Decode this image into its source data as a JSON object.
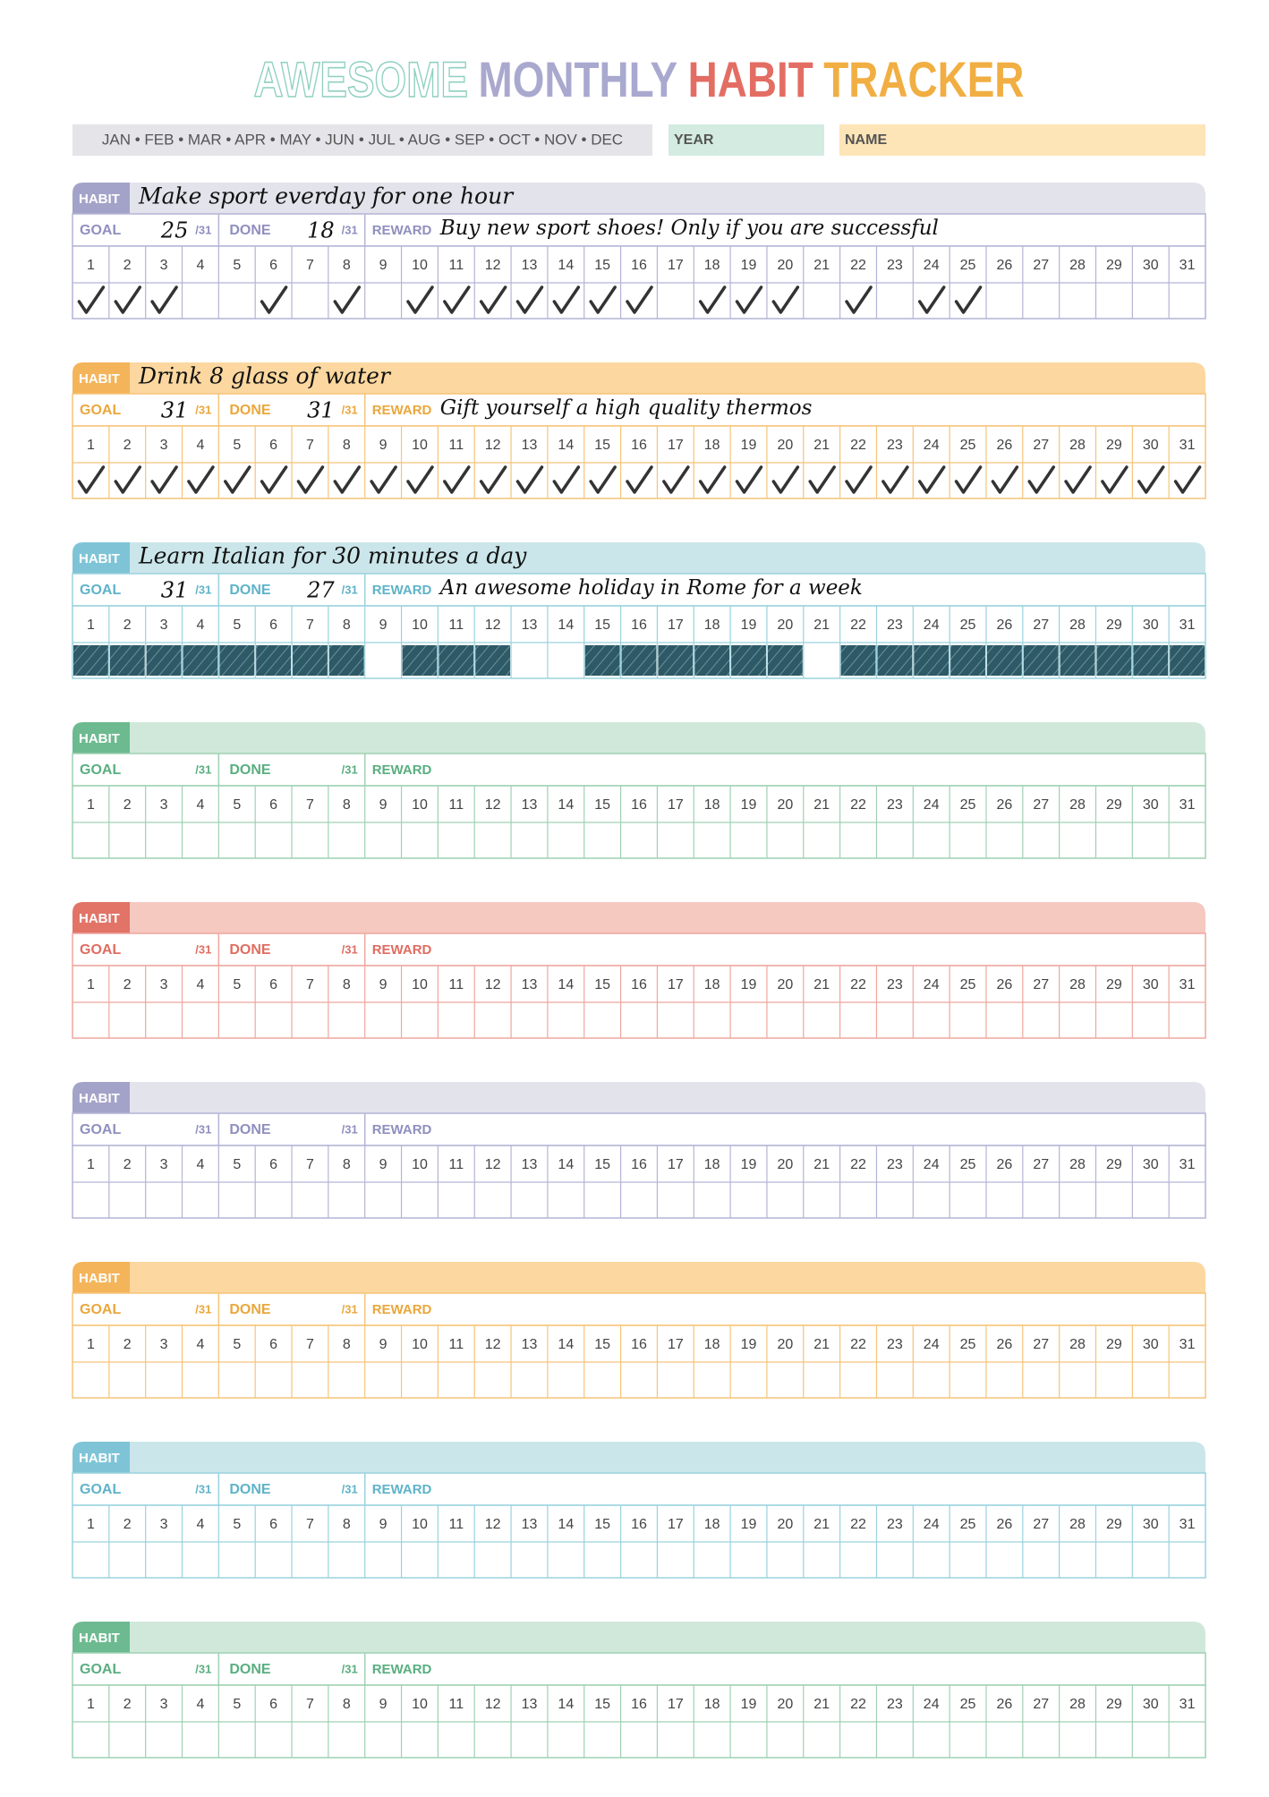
{
  "title": [
    "AWESOME",
    "MONTHLY",
    "HABIT",
    "TRACKER"
  ],
  "months": "JAN • FEB • MAR • APR • MAY • JUN • JUL • AUG • SEP • OCT • NOV • DEC",
  "year_label": "YEAR",
  "name_label": "NAME",
  "labels": {
    "habit": "HABIT",
    "goal": "GOAL",
    "done": "DONE",
    "reward": "REWARD",
    "of_days": "/31"
  },
  "days": [
    1,
    2,
    3,
    4,
    5,
    6,
    7,
    8,
    9,
    10,
    11,
    12,
    13,
    14,
    15,
    16,
    17,
    18,
    19,
    20,
    21,
    22,
    23,
    24,
    25,
    26,
    27,
    28,
    29,
    30,
    31
  ],
  "habits": [
    {
      "theme": "purple",
      "name": "Make sport everday for one hour",
      "goal": 25,
      "done": 18,
      "reward": "Buy new sport shoes! Only if you are successful",
      "mark": "check",
      "checked": [
        1,
        2,
        3,
        6,
        8,
        10,
        11,
        12,
        13,
        14,
        15,
        16,
        18,
        19,
        20,
        22,
        24,
        25
      ]
    },
    {
      "theme": "orange",
      "name": "Drink 8 glass of water",
      "goal": 31,
      "done": 31,
      "reward": "Gift yourself a high quality thermos",
      "mark": "check",
      "checked": [
        1,
        2,
        3,
        4,
        5,
        6,
        7,
        8,
        9,
        10,
        11,
        12,
        13,
        14,
        15,
        16,
        17,
        18,
        19,
        20,
        21,
        22,
        23,
        24,
        25,
        26,
        27,
        28,
        29,
        30,
        31
      ]
    },
    {
      "theme": "blue",
      "name": "Learn Italian for 30 minutes a day",
      "goal": 31,
      "done": 27,
      "reward": "An awesome holiday in Rome for a week",
      "mark": "hatch",
      "checked": [
        1,
        2,
        3,
        4,
        5,
        6,
        7,
        8,
        10,
        11,
        12,
        15,
        16,
        17,
        18,
        19,
        20,
        22,
        23,
        24,
        25,
        26,
        27,
        28,
        29,
        30,
        31
      ]
    },
    {
      "theme": "green"
    },
    {
      "theme": "red"
    },
    {
      "theme": "purple"
    },
    {
      "theme": "orange"
    },
    {
      "theme": "blue"
    },
    {
      "theme": "green"
    }
  ]
}
